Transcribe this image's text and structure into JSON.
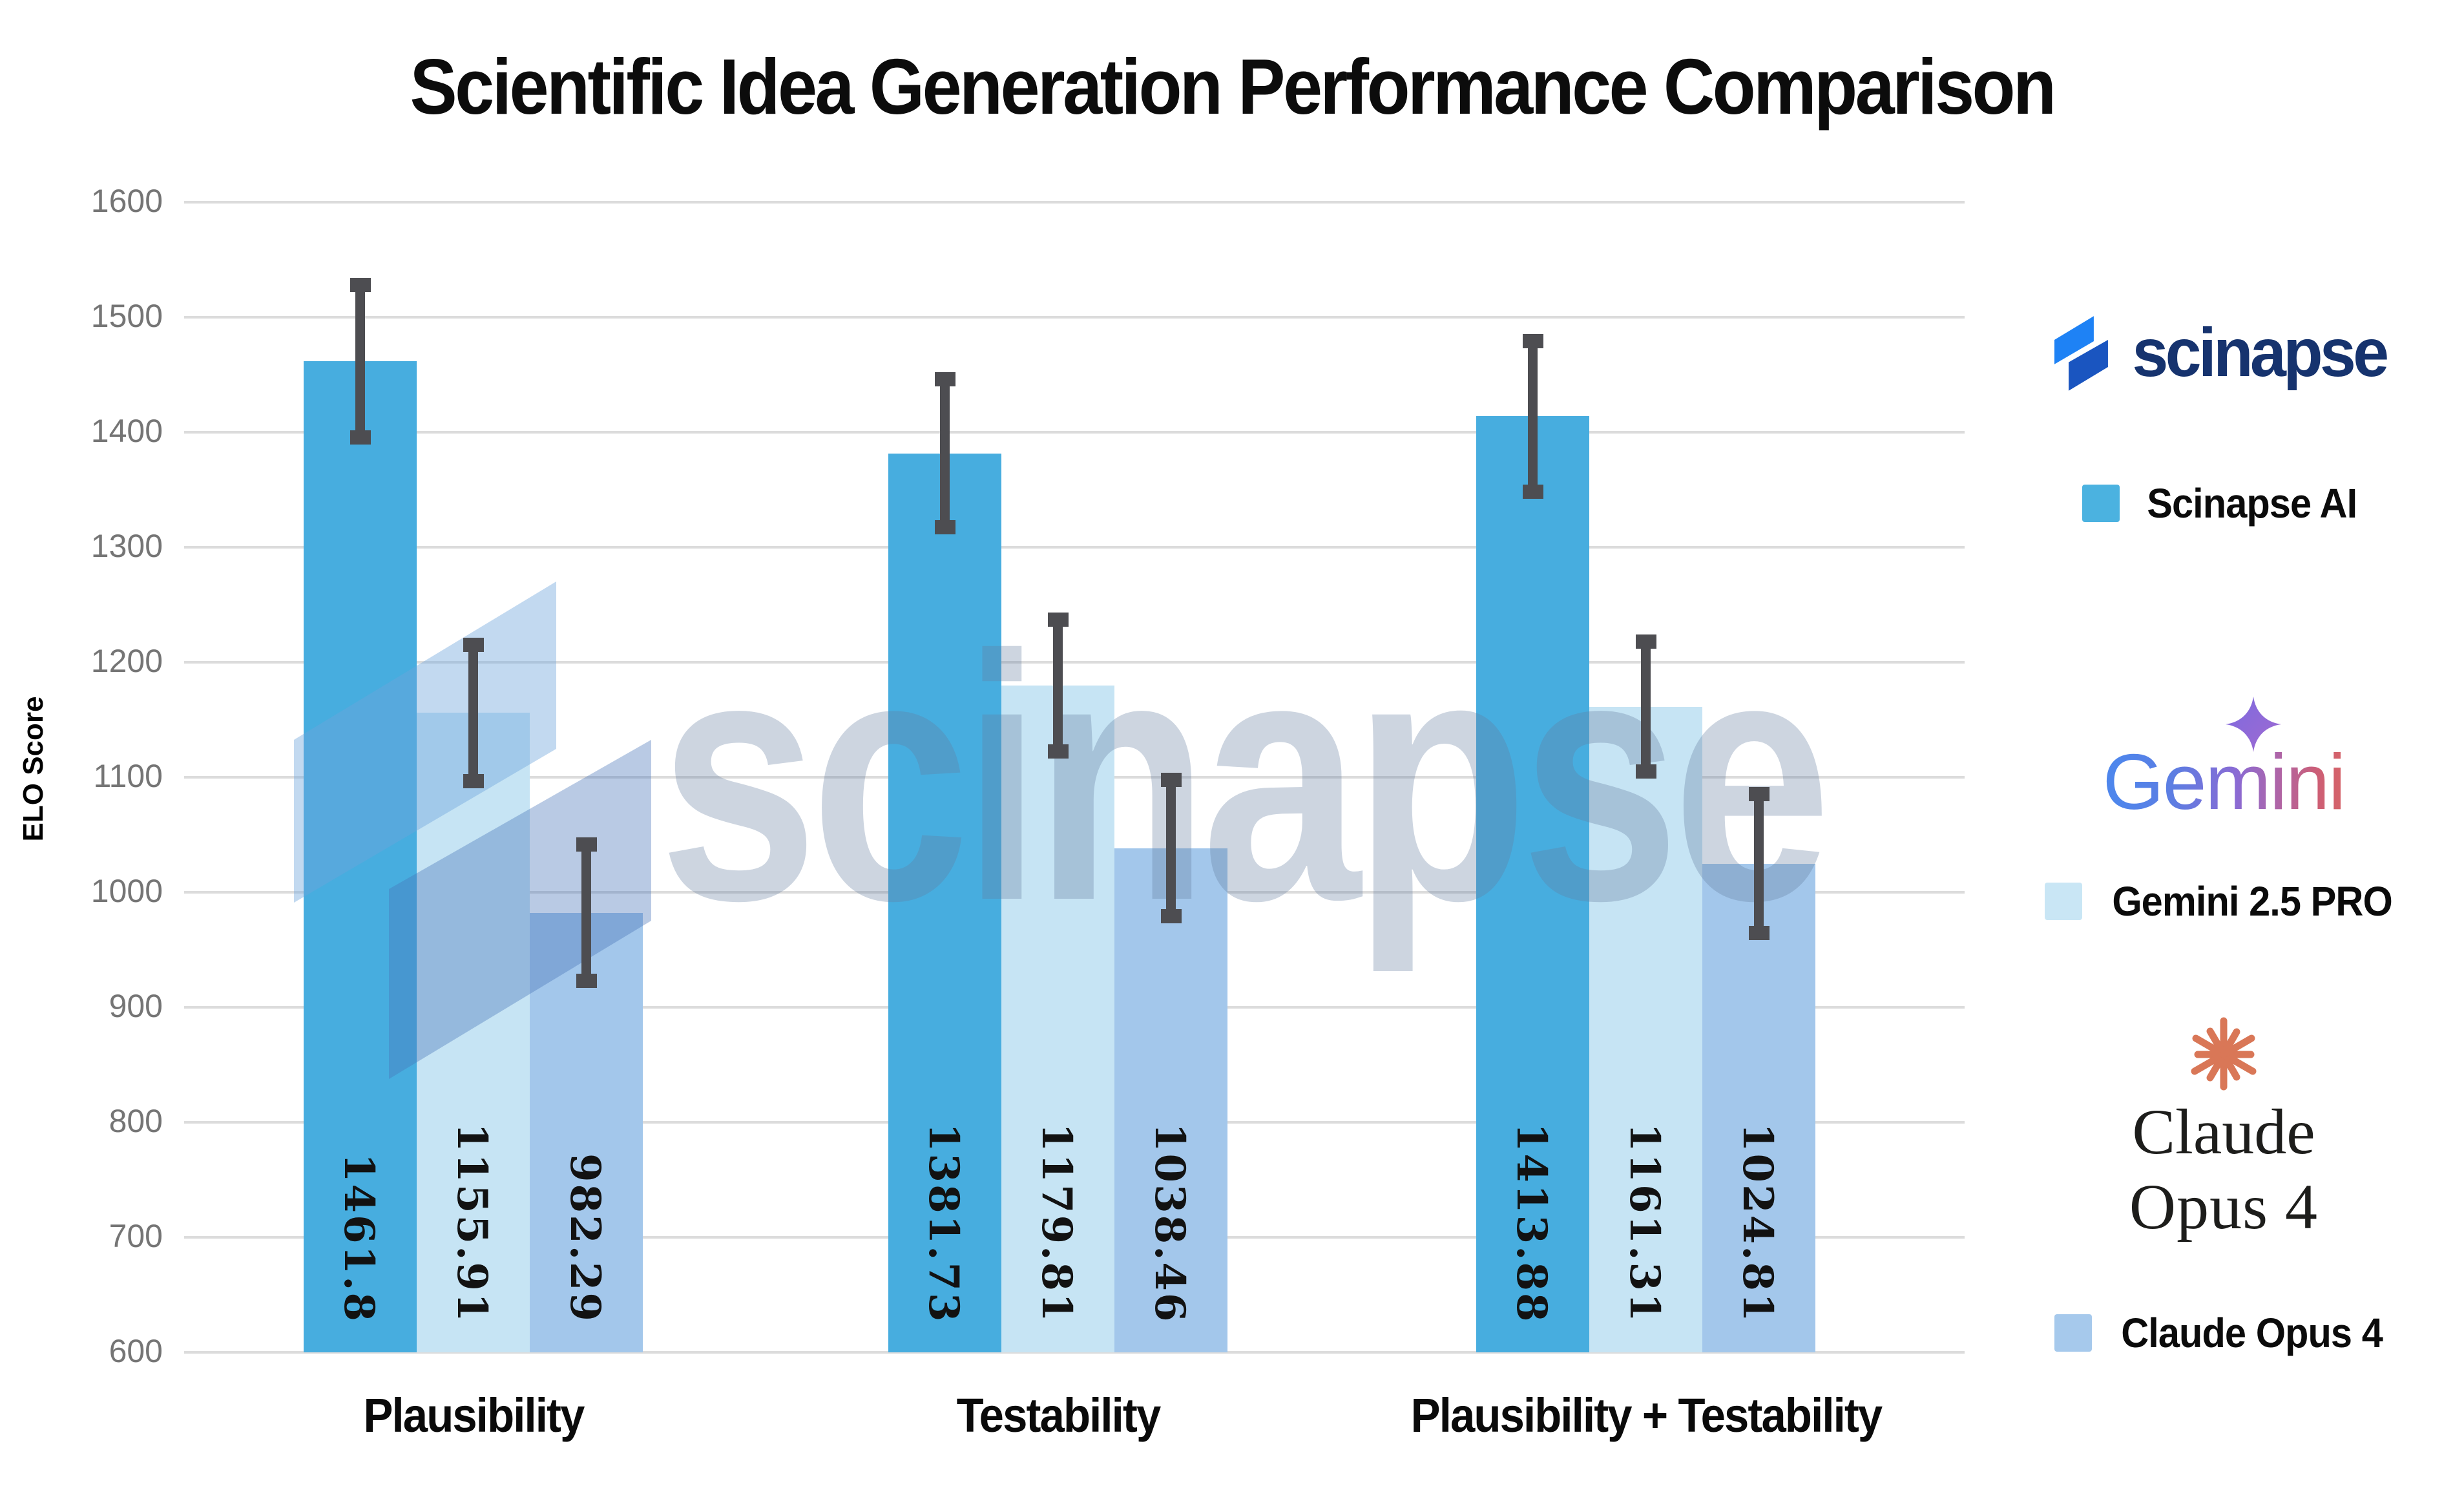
{
  "title": "Scientific Idea Generation Performance Comparison",
  "watermark": {
    "text": "scinapse"
  },
  "chart_data": {
    "type": "bar",
    "title": "Scientific Idea Generation Performance Comparison",
    "xlabel": "",
    "ylabel": "ELO Score",
    "ylim": [
      600,
      1600
    ],
    "ytick_step": 100,
    "grid": true,
    "legend_position": "right",
    "categories": [
      "Plausibility",
      "Testability",
      "Plausibility + Testability"
    ],
    "series": [
      {
        "name": "Scinapse AI",
        "color": "#47ADDF",
        "values": [
          1461.8,
          1381.73,
          1413.88
        ],
        "error_bars": [
          67,
          65,
          66
        ]
      },
      {
        "name": "Gemini 2.5 PRO",
        "color": "#C6E4F4",
        "values": [
          1155.91,
          1179.81,
          1161.31
        ],
        "error_bars": [
          60,
          58,
          57
        ]
      },
      {
        "name": "Claude Opus 4",
        "color": "#A3C7EB",
        "values": [
          982.29,
          1038.46,
          1024.81
        ],
        "error_bars": [
          60,
          60,
          61
        ]
      }
    ],
    "bar_value_labels": [
      [
        "1461.8",
        "1381.73",
        "1413.88"
      ],
      [
        "1155.91",
        "1179.81",
        "1161.31"
      ],
      [
        "982.29",
        "1038.46",
        "1024.81"
      ]
    ]
  },
  "legend": {
    "scinapse": {
      "wordmark": "scinapse",
      "label": "Scinapse AI",
      "swatch": "#4BB2E0",
      "wordmark_color": "#16336E",
      "logo_light": "#1E82F5",
      "logo_dark": "#1A55C0"
    },
    "gemini": {
      "wordmark": "Gemini",
      "label": "Gemini 2.5 PRO",
      "swatch": "#C9E6F5",
      "star_color": "#8A63D6"
    },
    "claude": {
      "wordmark_line1": "Claude",
      "wordmark_line2": "Opus 4",
      "label": "Claude Opus 4",
      "swatch": "#A6C9EC",
      "star_color": "#D97757"
    }
  },
  "colors": {
    "error_bar": "#4D4D51",
    "gridline": "#DCDCDC",
    "tick_label": "#757575",
    "bar_label": "#121212"
  }
}
